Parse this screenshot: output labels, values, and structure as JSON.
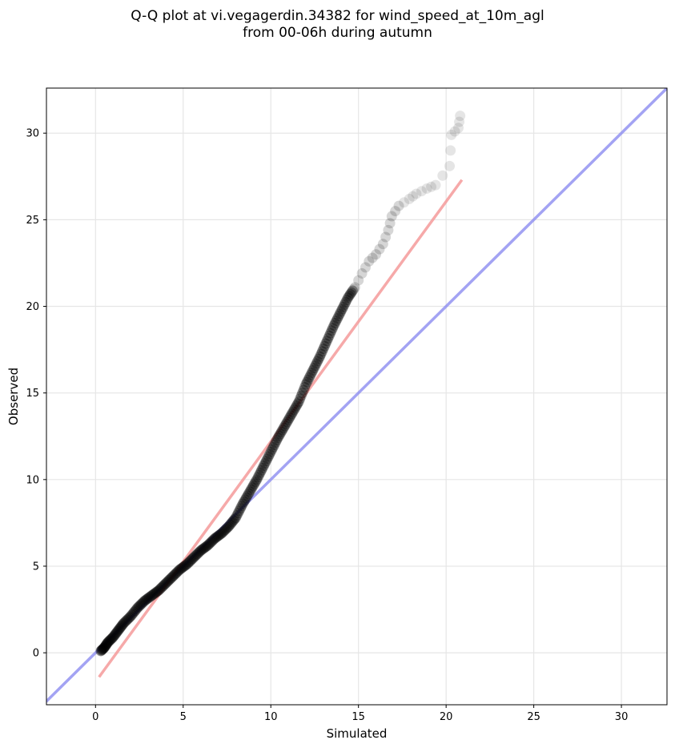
{
  "chart_data": {
    "type": "scatter",
    "title_line1": "Q-Q plot at vi.vegagerdin.34382 for wind_speed_at_10m_agl",
    "title_line2": "from 00-06h during autumn",
    "xlabel": "Simulated",
    "ylabel": "Observed",
    "xlim": [
      -2.8,
      32.6
    ],
    "ylim": [
      -3.0,
      32.6
    ],
    "xticks": [
      0,
      5,
      10,
      15,
      20,
      25,
      30
    ],
    "yticks": [
      0,
      5,
      10,
      15,
      20,
      25,
      30
    ],
    "grid": true,
    "identity_line": {
      "color": "#8c8cf0",
      "from": [
        -3,
        -3
      ],
      "to": [
        33,
        33
      ]
    },
    "fit_line": {
      "color": "#f59a9a",
      "from": [
        0.2,
        -1.4
      ],
      "to": [
        20.9,
        27.3
      ]
    },
    "points_color": "#000000",
    "quantile_points": [
      [
        0.3,
        0.1
      ],
      [
        0.5,
        0.3
      ],
      [
        0.7,
        0.6
      ],
      [
        1.0,
        0.9
      ],
      [
        1.3,
        1.3
      ],
      [
        1.6,
        1.7
      ],
      [
        2.0,
        2.1
      ],
      [
        2.4,
        2.6
      ],
      [
        2.8,
        3.0
      ],
      [
        3.2,
        3.3
      ],
      [
        3.6,
        3.6
      ],
      [
        4.0,
        4.0
      ],
      [
        4.4,
        4.4
      ],
      [
        4.8,
        4.8
      ],
      [
        5.2,
        5.1
      ],
      [
        5.6,
        5.5
      ],
      [
        6.0,
        5.9
      ],
      [
        6.4,
        6.2
      ],
      [
        6.8,
        6.6
      ],
      [
        7.2,
        6.9
      ],
      [
        7.6,
        7.3
      ],
      [
        8.0,
        7.8
      ],
      [
        8.4,
        8.6
      ],
      [
        8.8,
        9.3
      ],
      [
        9.2,
        10.0
      ],
      [
        9.6,
        10.8
      ],
      [
        10.0,
        11.6
      ],
      [
        10.4,
        12.4
      ],
      [
        10.8,
        13.1
      ],
      [
        11.2,
        13.8
      ],
      [
        11.6,
        14.5
      ],
      [
        12.0,
        15.5
      ],
      [
        12.4,
        16.3
      ],
      [
        12.8,
        17.1
      ],
      [
        13.2,
        18.0
      ],
      [
        13.6,
        18.9
      ],
      [
        14.0,
        19.7
      ],
      [
        14.4,
        20.5
      ],
      [
        14.8,
        21.1
      ],
      [
        15.2,
        21.9
      ],
      [
        15.6,
        22.6
      ],
      [
        16.0,
        23.0
      ],
      [
        16.4,
        23.6
      ],
      [
        16.7,
        24.4
      ],
      [
        16.9,
        25.2
      ],
      [
        17.3,
        25.8
      ],
      [
        17.9,
        26.2
      ],
      [
        18.3,
        26.5
      ],
      [
        18.9,
        26.8
      ],
      [
        19.4,
        27.0
      ],
      [
        20.2,
        28.1
      ],
      [
        20.3,
        29.9
      ],
      [
        20.7,
        30.3
      ],
      [
        20.8,
        31.0
      ]
    ]
  }
}
